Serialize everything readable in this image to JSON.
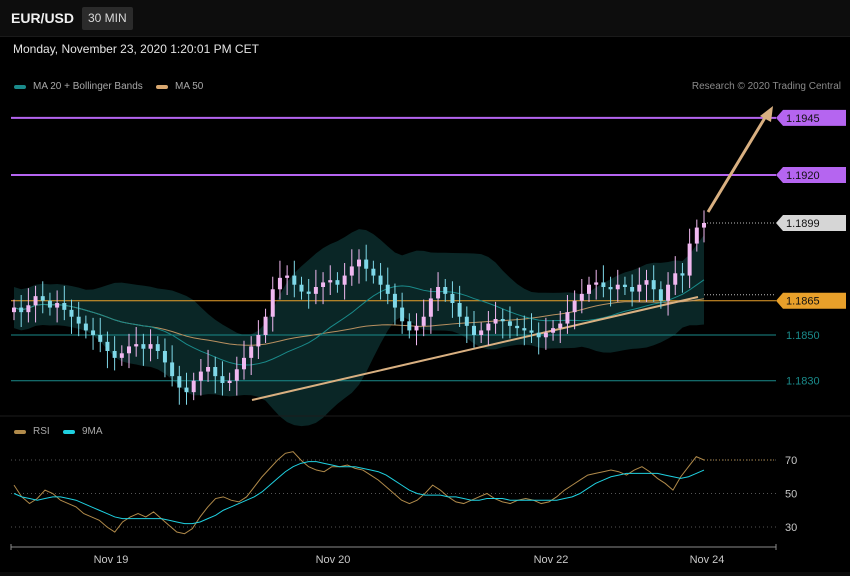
{
  "header": {
    "symbol": "EUR/USD",
    "timeframe": "30 MIN",
    "datetime": "Monday, November 23, 2020 1:20:01 PM CET"
  },
  "legend": {
    "items": [
      {
        "label": "MA 20 + Bollinger Bands",
        "color": "#1a8a8a"
      },
      {
        "label": "MA 50",
        "color": "#d9a870"
      }
    ],
    "copyright": "Research © 2020 Trading Central"
  },
  "rsi_legend": {
    "items": [
      {
        "label": "RSI",
        "color": "#b08a4a"
      },
      {
        "label": "9MA",
        "color": "#1fd0e0"
      }
    ]
  },
  "colors": {
    "up_candle": "#f0b8f0",
    "down_candle": "#7fd8e8",
    "resistance": "#b565f0",
    "support": "#1a8a8a",
    "pivot": "#e8a02a",
    "trendline": "#d9b081",
    "arrow": "#d9b081",
    "band_fill": "#0b2a2a",
    "ma20": "#1a8a8a",
    "ma50": "#b89060",
    "rsi": "#b08a4a",
    "rsi_ma": "#1fd0e0"
  },
  "chart_data": {
    "type": "candlestick",
    "title": "EUR/USD",
    "timeframe": "30 MIN",
    "x_labels": [
      "Nov 19",
      "Nov 20",
      "Nov 22",
      "Nov 24"
    ],
    "price_ylim": [
      1.1815,
      1.1955
    ],
    "levels": [
      {
        "value": 1.1945,
        "label": "1.1945",
        "kind": "resistance"
      },
      {
        "value": 1.192,
        "label": "1.1920",
        "kind": "resistance"
      },
      {
        "value": 1.1899,
        "label": "1.1899",
        "kind": "last_price"
      },
      {
        "value": 1.1865,
        "label": "1.1865",
        "kind": "pivot"
      },
      {
        "value": 1.185,
        "label": "1.1850",
        "kind": "support"
      },
      {
        "value": 1.183,
        "label": "1.1830",
        "kind": "support"
      }
    ],
    "close_series": [
      1.1862,
      1.186,
      1.1863,
      1.1867,
      1.1865,
      1.1862,
      1.1864,
      1.1861,
      1.1858,
      1.1855,
      1.1852,
      1.185,
      1.1847,
      1.1843,
      1.184,
      1.1842,
      1.1845,
      1.1846,
      1.1844,
      1.1846,
      1.1843,
      1.1838,
      1.1832,
      1.1827,
      1.1825,
      1.183,
      1.1834,
      1.1836,
      1.1832,
      1.1829,
      1.183,
      1.1835,
      1.184,
      1.1845,
      1.185,
      1.1858,
      1.187,
      1.1875,
      1.1876,
      1.1872,
      1.1869,
      1.1868,
      1.1871,
      1.1873,
      1.1874,
      1.1872,
      1.1876,
      1.188,
      1.1883,
      1.1879,
      1.1876,
      1.1872,
      1.1868,
      1.1862,
      1.1856,
      1.1852,
      1.1854,
      1.1858,
      1.1866,
      1.1871,
      1.1868,
      1.1864,
      1.1858,
      1.1854,
      1.185,
      1.1852,
      1.1855,
      1.1857,
      1.1856,
      1.1854,
      1.1853,
      1.1852,
      1.1851,
      1.1849,
      1.1851,
      1.1853,
      1.1855,
      1.186,
      1.1865,
      1.1868,
      1.1872,
      1.1873,
      1.1871,
      1.187,
      1.1872,
      1.1871,
      1.1869,
      1.1872,
      1.1874,
      1.187,
      1.1865,
      1.1872,
      1.1877,
      1.1876,
      1.189,
      1.1897,
      1.1899
    ],
    "rsi": {
      "values": [
        55,
        48,
        44,
        47,
        52,
        50,
        46,
        44,
        42,
        38,
        36,
        34,
        30,
        27,
        33,
        36,
        38,
        36,
        39,
        35,
        31,
        27,
        26,
        29,
        36,
        42,
        47,
        48,
        46,
        45,
        48,
        54,
        60,
        65,
        70,
        74,
        75,
        70,
        66,
        64,
        63,
        66,
        66,
        67,
        65,
        64,
        61,
        58,
        54,
        50,
        46,
        44,
        46,
        50,
        55,
        52,
        48,
        45,
        44,
        46,
        48,
        50,
        47,
        45,
        44,
        46,
        47,
        46,
        44,
        45,
        48,
        52,
        55,
        58,
        61,
        62,
        63,
        64,
        63,
        61,
        64,
        66,
        63,
        59,
        56,
        52,
        60,
        66,
        72,
        70
      ],
      "ma_values": [
        50,
        48,
        47,
        46,
        47,
        48,
        48,
        47,
        46,
        44,
        42,
        40,
        38,
        36,
        35,
        35,
        35,
        35,
        35,
        35,
        34,
        33,
        32,
        32,
        33,
        35,
        37,
        40,
        42,
        44,
        46,
        48,
        51,
        55,
        59,
        63,
        66,
        68,
        69,
        69,
        68,
        67,
        66,
        66,
        66,
        65,
        64,
        63,
        61,
        58,
        55,
        52,
        50,
        49,
        49,
        49,
        48,
        48,
        47,
        46,
        46,
        47,
        47,
        47,
        46,
        46,
        46,
        46,
        46,
        46,
        46,
        47,
        48,
        50,
        53,
        56,
        58,
        60,
        61,
        62,
        62,
        62,
        62,
        62,
        61,
        60,
        59,
        60,
        62,
        64
      ],
      "levels": [
        70,
        50,
        30
      ]
    }
  }
}
